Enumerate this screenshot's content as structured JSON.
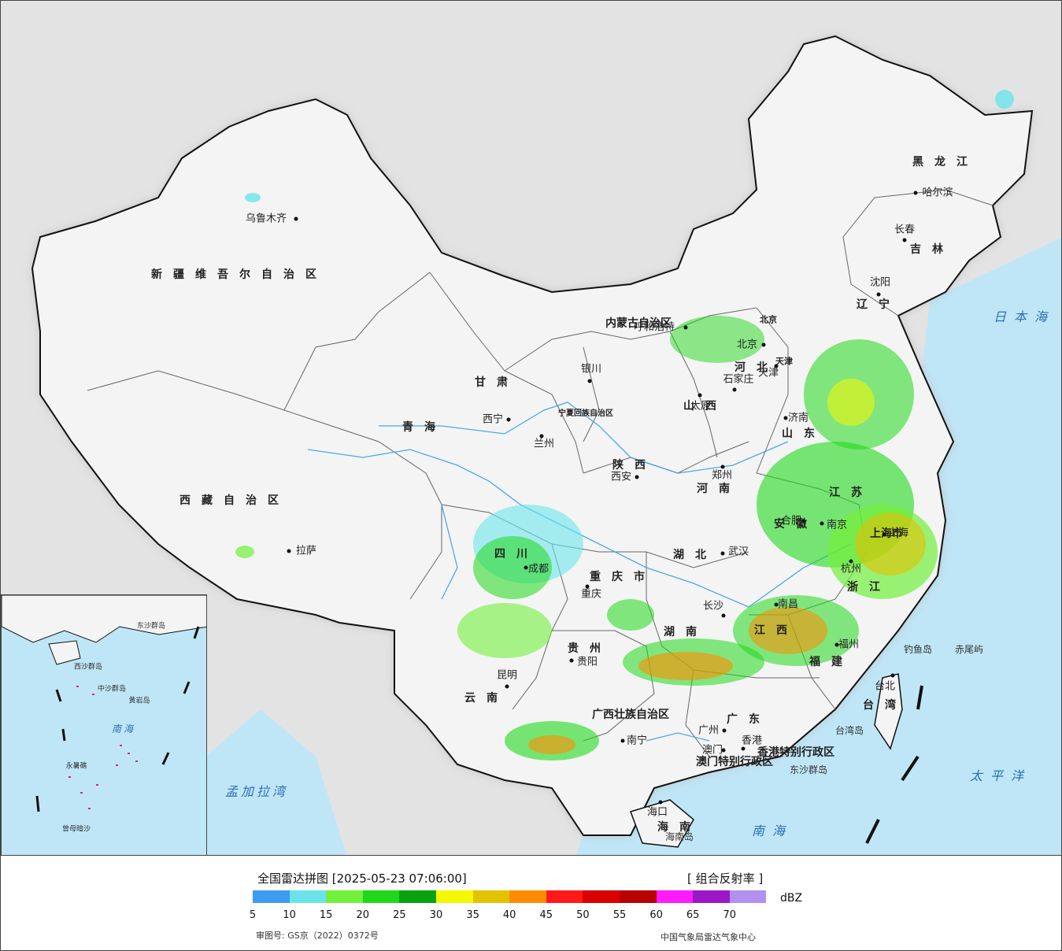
{
  "legend": {
    "title": "全国雷达拼图 [2025-05-23 07:06:00]",
    "product": "[ 组合反射率 ]",
    "unit": "dBZ",
    "ticks": [
      "5",
      "10",
      "15",
      "20",
      "25",
      "30",
      "35",
      "40",
      "45",
      "50",
      "55",
      "60",
      "65",
      "70"
    ],
    "colors": [
      "#3d9bf0",
      "#6ae4ea",
      "#72f03c",
      "#20d81a",
      "#08a30c",
      "#f6f800",
      "#e3c200",
      "#ff8c00",
      "#ff1a1a",
      "#d80000",
      "#b90000",
      "#ff1aff",
      "#9b17c8",
      "#b090f0"
    ],
    "review_number": "审图号: GS京（2022）0372号",
    "source": "中国气象局雷达气象中心"
  },
  "map": {
    "colors": {
      "sea": "#bfe6f7",
      "land_china": "#f4f4f4",
      "land_other": "#e3e3e3",
      "border": "#111111",
      "river": "#3aa0e6"
    },
    "regions": [
      "新疆维吾尔自治区",
      "西藏自治区",
      "黑龙江",
      "内蒙古自治区",
      "吉林",
      "辽宁",
      "河北",
      "山西",
      "山东",
      "河南",
      "江苏",
      "安徽",
      "湖北",
      "湖南",
      "江西",
      "浙江",
      "福建",
      "广东",
      "广西壮族自治区",
      "贵州",
      "云南",
      "四川",
      "重庆市",
      "陕西",
      "甘肃",
      "青海",
      "宁夏回族自治区",
      "海南",
      "台湾",
      "上海市",
      "北京",
      "天津",
      "香港特别行政区",
      "澳门特别行政区"
    ],
    "cities": [
      "乌鲁木齐",
      "拉萨",
      "西宁",
      "兰州",
      "银川",
      "呼和浩特",
      "北京",
      "天津",
      "石家庄",
      "太原",
      "济南",
      "郑州",
      "西安",
      "成都",
      "重庆",
      "贵阳",
      "昆明",
      "南宁",
      "长沙",
      "武汉",
      "合肥",
      "南京",
      "上海",
      "杭州",
      "南昌",
      "福州",
      "广州",
      "香港",
      "澳门",
      "海口",
      "台北",
      "沈阳",
      "长春",
      "哈尔滨"
    ],
    "seas": [
      "日本海",
      "太平洋",
      "南海",
      "孟加拉湾"
    ],
    "islands": [
      "钓鱼岛",
      "赤尾屿",
      "台湾岛",
      "东沙群岛",
      "海南岛"
    ],
    "inset_labels": [
      "南海",
      "永暑礁",
      "曾母暗沙",
      "中沙群岛",
      "黄岩岛",
      "东沙群岛",
      "西沙群岛"
    ]
  }
}
